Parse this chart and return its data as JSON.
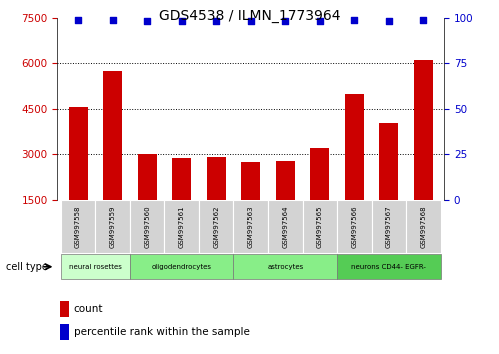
{
  "title": "GDS4538 / ILMN_1773964",
  "samples": [
    "GSM997558",
    "GSM997559",
    "GSM997560",
    "GSM997561",
    "GSM997562",
    "GSM997563",
    "GSM997564",
    "GSM997565",
    "GSM997566",
    "GSM997567",
    "GSM997568"
  ],
  "counts": [
    4550,
    5750,
    3000,
    2870,
    2920,
    2750,
    2800,
    3200,
    5000,
    4050,
    6100
  ],
  "percentiles": [
    99,
    99,
    98,
    98,
    98,
    98,
    98,
    98,
    99,
    98,
    99
  ],
  "bar_color": "#cc0000",
  "dot_color": "#0000cc",
  "ylim_left": [
    1500,
    7500
  ],
  "ylim_right": [
    0,
    100
  ],
  "yticks_left": [
    1500,
    3000,
    4500,
    6000,
    7500
  ],
  "yticks_right": [
    0,
    25,
    50,
    75,
    100
  ],
  "grid_lines": [
    3000,
    4500,
    6000
  ],
  "ct_labels": [
    "neural rosettes",
    "oligodendrocytes",
    "astrocytes",
    "neurons CD44- EGFR-"
  ],
  "ct_ranges": [
    [
      0,
      2
    ],
    [
      2,
      5
    ],
    [
      5,
      8
    ],
    [
      8,
      11
    ]
  ],
  "ct_colors": [
    "#ccffcc",
    "#88ee88",
    "#88ee88",
    "#55cc55"
  ],
  "bar_bg_color": "#d3d3d3"
}
